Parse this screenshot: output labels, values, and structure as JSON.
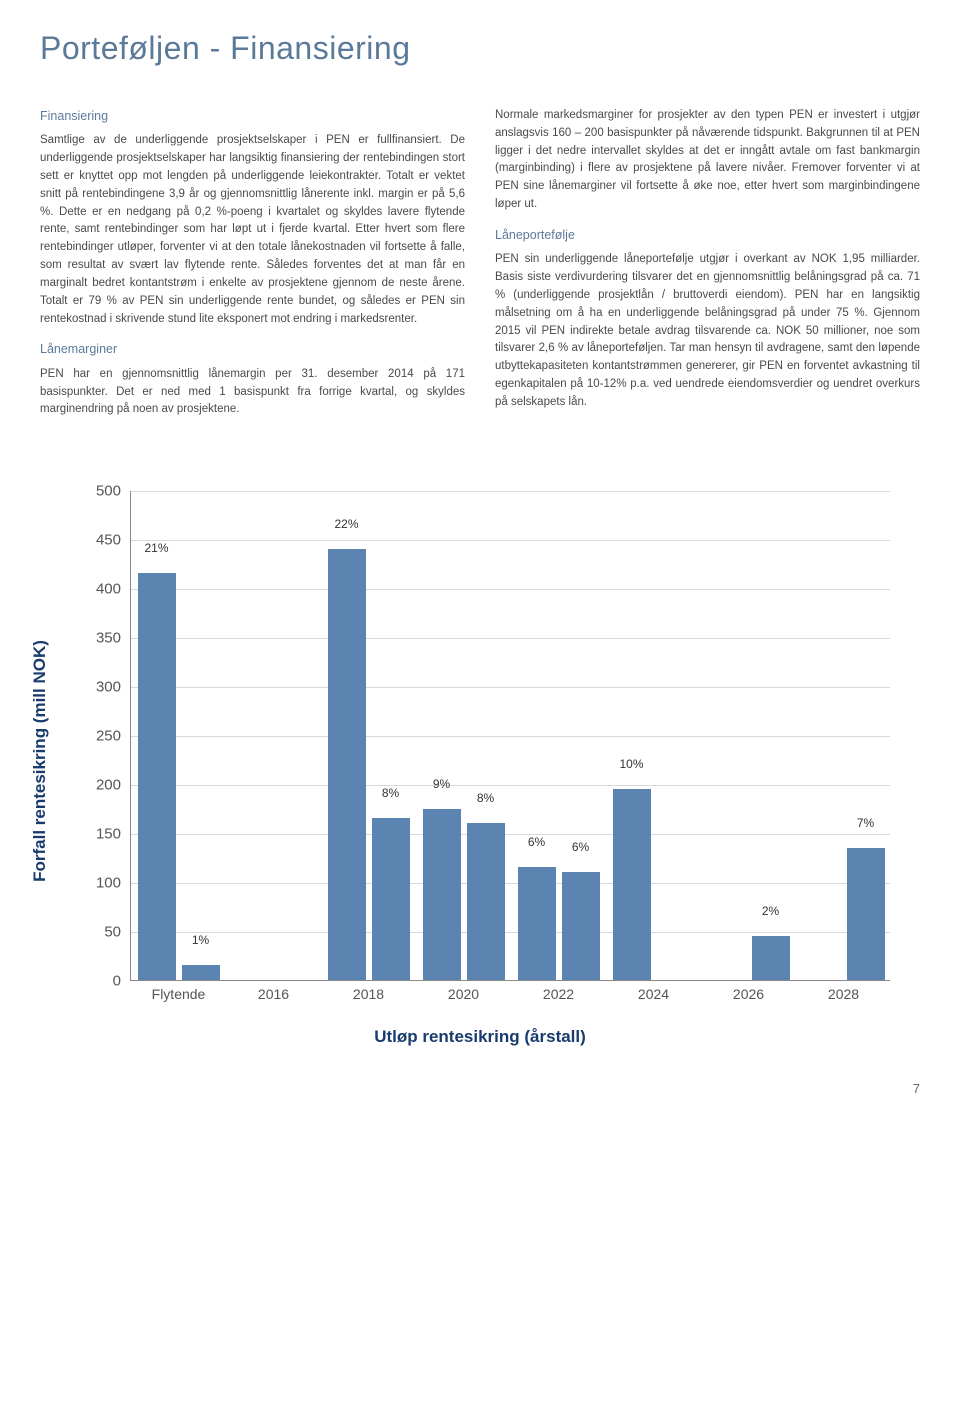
{
  "title": "Porteføljen - Finansiering",
  "page_number": "7",
  "left_col": {
    "h1": "Finansiering",
    "p1": "Samtlige av de underliggende prosjektselskaper i PEN er fullfinansiert. De underliggende prosjektselskaper har langsiktig finansiering der rentebindingen stort sett er knyttet opp mot lengden på underliggende leiekontrakter. Totalt er vektet snitt på rentebindingene 3,9 år og gjennomsnittlig lånerente inkl. margin er på 5,6 %. Dette er en nedgang på 0,2 %-poeng i kvartalet og skyldes lavere flytende rente, samt rentebindinger som har løpt ut i fjerde kvartal. Etter hvert som flere rentebindinger utløper, forventer vi at den totale lånekostnaden vil fortsette å falle, som resultat av svært lav flytende rente. Således forventes det at man får en marginalt bedret kontantstrøm i enkelte av prosjektene gjennom de neste årene. Totalt er 79 % av PEN sin underliggende rente bundet, og således er PEN sin rentekostnad i skrivende stund lite eksponert mot endring i markedsrenter.",
    "h2": "Lånemarginer",
    "p2": "PEN har en gjennomsnittlig lånemargin per 31. desember 2014 på 171 basispunkter. Det er ned med 1 basispunkt fra forrige kvartal, og skyldes marginendring på noen av prosjektene."
  },
  "right_col": {
    "p1": "Normale markedsmarginer for prosjekter av den typen PEN er investert i utgjør anslagsvis 160 – 200 basispunkter på nåværende tidspunkt. Bakgrunnen til at PEN ligger i det nedre intervallet skyldes at det er inngått avtale om fast bankmargin (marginbinding) i flere av prosjektene på lavere nivåer. Fremover forventer vi at PEN sine lånemarginer vil fortsette å øke noe, etter hvert som marginbindingene løper ut.",
    "h1": "Låneportefølje",
    "p2": "PEN sin underliggende låneportefølje utgjør i overkant av NOK 1,95 milliarder. Basis siste verdivurdering tilsvarer det en gjennomsnittlig belåningsgrad på ca. 71 % (underliggende prosjektlån / bruttoverdi eiendom). PEN har en langsiktig målsetning om å ha en underliggende belåningsgrad på under 75 %. Gjennom 2015 vil PEN indirekte betale avdrag tilsvarende ca. NOK 50 millioner, noe som tilsvarer 2,6 % av låneporteføljen. Tar man hensyn til avdragene, samt den løpende utbyttekapasiteten kontantstrømmen genererer, gir PEN en forventet avkastning til egenkapitalen på 10-12% p.a. ved uendrede eiendomsverdier og uendret overkurs på selskapets lån."
  },
  "chart": {
    "type": "bar",
    "y_label": "Forfall rentesikring (mill NOK)",
    "x_label": "Utløp rentesikring (årstall)",
    "ylim": [
      0,
      500
    ],
    "ytick_step": 50,
    "bar_color": "#5b84b1",
    "grid_color": "#d9d9d9",
    "background": "#ffffff",
    "categories": [
      {
        "label": "Flytende",
        "bars": [
          {
            "val": 415,
            "pct": "21%"
          },
          {
            "val": 15,
            "pct": "1%"
          }
        ]
      },
      {
        "label": "2016",
        "bars": [
          {
            "val": 0,
            "pct": ""
          },
          {
            "val": 0,
            "pct": ""
          }
        ]
      },
      {
        "label": "2018",
        "bars": [
          {
            "val": 440,
            "pct": "22%"
          },
          {
            "val": 165,
            "pct": "8%"
          }
        ]
      },
      {
        "label": "2020",
        "bars": [
          {
            "val": 175,
            "pct": "9%"
          },
          {
            "val": 160,
            "pct": "8%"
          }
        ]
      },
      {
        "label": "2022",
        "bars": [
          {
            "val": 115,
            "pct": "6%"
          },
          {
            "val": 110,
            "pct": "6%"
          }
        ]
      },
      {
        "label": "2024",
        "bars": [
          {
            "val": 195,
            "pct": "10%"
          },
          {
            "val": 0,
            "pct": ""
          }
        ]
      },
      {
        "label": "2026",
        "bars": [
          {
            "val": 0,
            "pct": ""
          },
          {
            "val": 45,
            "pct": "2%"
          }
        ]
      },
      {
        "label": "2028",
        "bars": [
          {
            "val": 0,
            "pct": ""
          },
          {
            "val": 135,
            "pct": "7%"
          }
        ]
      }
    ]
  }
}
